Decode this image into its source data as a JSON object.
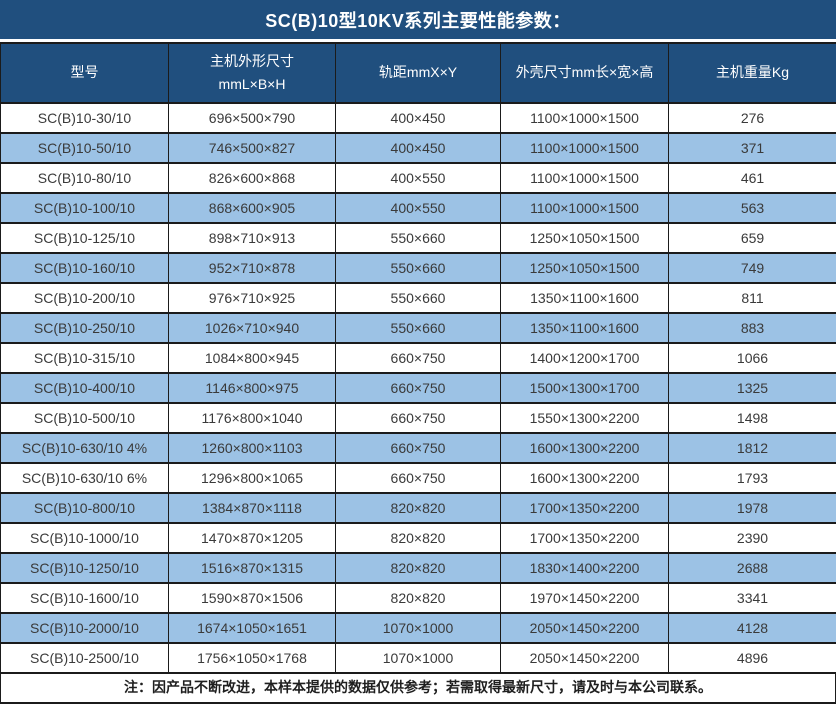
{
  "title": "SC(B)10型10KV系列主要性能参数：",
  "table": {
    "headers": {
      "model": "型号",
      "dims_line1": "主机外形尺寸",
      "dims_line2": "mmL×B×H",
      "gauge": "轨距mmX×Y",
      "shell": "外壳尺寸mm长×宽×高",
      "weight": "主机重量Kg"
    },
    "rows": [
      [
        "SC(B)10-30/10",
        "696×500×790",
        "400×450",
        "1100×1000×1500",
        "276"
      ],
      [
        "SC(B)10-50/10",
        "746×500×827",
        "400×450",
        "1100×1000×1500",
        "371"
      ],
      [
        "SC(B)10-80/10",
        "826×600×868",
        "400×550",
        "1100×1000×1500",
        "461"
      ],
      [
        "SC(B)10-100/10",
        "868×600×905",
        "400×550",
        "1100×1000×1500",
        "563"
      ],
      [
        "SC(B)10-125/10",
        "898×710×913",
        "550×660",
        "1250×1050×1500",
        "659"
      ],
      [
        "SC(B)10-160/10",
        "952×710×878",
        "550×660",
        "1250×1050×1500",
        "749"
      ],
      [
        "SC(B)10-200/10",
        "976×710×925",
        "550×660",
        "1350×1100×1600",
        "811"
      ],
      [
        "SC(B)10-250/10",
        "1026×710×940",
        "550×660",
        "1350×1100×1600",
        "883"
      ],
      [
        "SC(B)10-315/10",
        "1084×800×945",
        "660×750",
        "1400×1200×1700",
        "1066"
      ],
      [
        "SC(B)10-400/10",
        "1146×800×975",
        "660×750",
        "1500×1300×1700",
        "1325"
      ],
      [
        "SC(B)10-500/10",
        "1176×800×1040",
        "660×750",
        "1550×1300×2200",
        "1498"
      ],
      [
        "SC(B)10-630/10 4%",
        "1260×800×1103",
        "660×750",
        "1600×1300×2200",
        "1812"
      ],
      [
        "SC(B)10-630/10 6%",
        "1296×800×1065",
        "660×750",
        "1600×1300×2200",
        "1793"
      ],
      [
        "SC(B)10-800/10",
        "1384×870×1118",
        "820×820",
        "1700×1350×2200",
        "1978"
      ],
      [
        "SC(B)10-1000/10",
        "1470×870×1205",
        "820×820",
        "1700×1350×2200",
        "2390"
      ],
      [
        "SC(B)10-1250/10",
        "1516×870×1315",
        "820×820",
        "1830×1400×2200",
        "2688"
      ],
      [
        "SC(B)10-1600/10",
        "1590×870×1506",
        "820×820",
        "1970×1450×2200",
        "3341"
      ],
      [
        "SC(B)10-2000/10",
        "1674×1050×1651",
        "1070×1000",
        "2050×1450×2200",
        "4128"
      ],
      [
        "SC(B)10-2500/10",
        "1756×1050×1768",
        "1070×1000",
        "2050×1450×2200",
        "4896"
      ]
    ]
  },
  "footer_note": "注：因产品不断改进，本样本提供的数据仅供参考；若需取得最新尺寸，请及时与本公司联系。",
  "colors": {
    "header_bg": "#204F7E",
    "row_stripe_bg": "#9CC2E5",
    "row_bg": "#FFFFFF",
    "border": "#1B1B1B",
    "header_text": "#FFFFFF",
    "body_text": "#3A3A3A"
  }
}
